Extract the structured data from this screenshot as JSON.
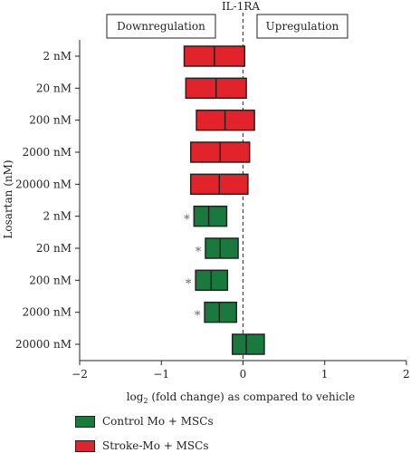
{
  "chart_data": {
    "type": "bar",
    "title": "IL-1RA",
    "orientation": "horizontal",
    "xlabel_main": "log",
    "xlabel_sub": "2",
    "xlabel_rest": " (fold change) as compared to vehicle",
    "ylabel": "Losartan (nM)",
    "xlim": [
      -2,
      2
    ],
    "xticks": [
      "−2",
      "−1",
      "0",
      "1",
      "2"
    ],
    "xtick_values": [
      -2,
      -1,
      0,
      1,
      2
    ],
    "reference_line": 0,
    "region_labels": {
      "left": "Downregulation",
      "right": "Upregulation"
    },
    "categories": [
      "2 nM",
      "20 nM",
      "200 nM",
      "2000 nM",
      "20000 nM",
      "2 nM",
      "20 nM",
      "200 nM",
      "2000 nM",
      "20000 nM"
    ],
    "bars": [
      {
        "series": "Stroke-Mo + MSCs",
        "low": -0.72,
        "mid": -0.35,
        "high": 0.02,
        "significant": false
      },
      {
        "series": "Stroke-Mo + MSCs",
        "low": -0.7,
        "mid": -0.33,
        "high": 0.04,
        "significant": false
      },
      {
        "series": "Stroke-Mo + MSCs",
        "low": -0.57,
        "mid": -0.22,
        "high": 0.14,
        "significant": false
      },
      {
        "series": "Stroke-Mo + MSCs",
        "low": -0.64,
        "mid": -0.28,
        "high": 0.08,
        "significant": false
      },
      {
        "series": "Stroke-Mo + MSCs",
        "low": -0.64,
        "mid": -0.29,
        "high": 0.06,
        "significant": false
      },
      {
        "series": "Control Mo + MSCs",
        "low": -0.6,
        "mid": -0.42,
        "high": -0.2,
        "significant": true
      },
      {
        "series": "Control Mo + MSCs",
        "low": -0.46,
        "mid": -0.28,
        "high": -0.06,
        "significant": true
      },
      {
        "series": "Control Mo + MSCs",
        "low": -0.58,
        "mid": -0.39,
        "high": -0.19,
        "significant": true
      },
      {
        "series": "Control Mo + MSCs",
        "low": -0.47,
        "mid": -0.29,
        "high": -0.08,
        "significant": true
      },
      {
        "series": "Control Mo + MSCs",
        "low": -0.13,
        "mid": 0.04,
        "high": 0.26,
        "significant": false
      }
    ],
    "significance_marker": "*",
    "series": [
      {
        "name": "Control Mo + MSCs",
        "color": "#1a7a3e"
      },
      {
        "name": "Stroke-Mo + MSCs",
        "color": "#e3232b"
      }
    ],
    "grid": false
  }
}
